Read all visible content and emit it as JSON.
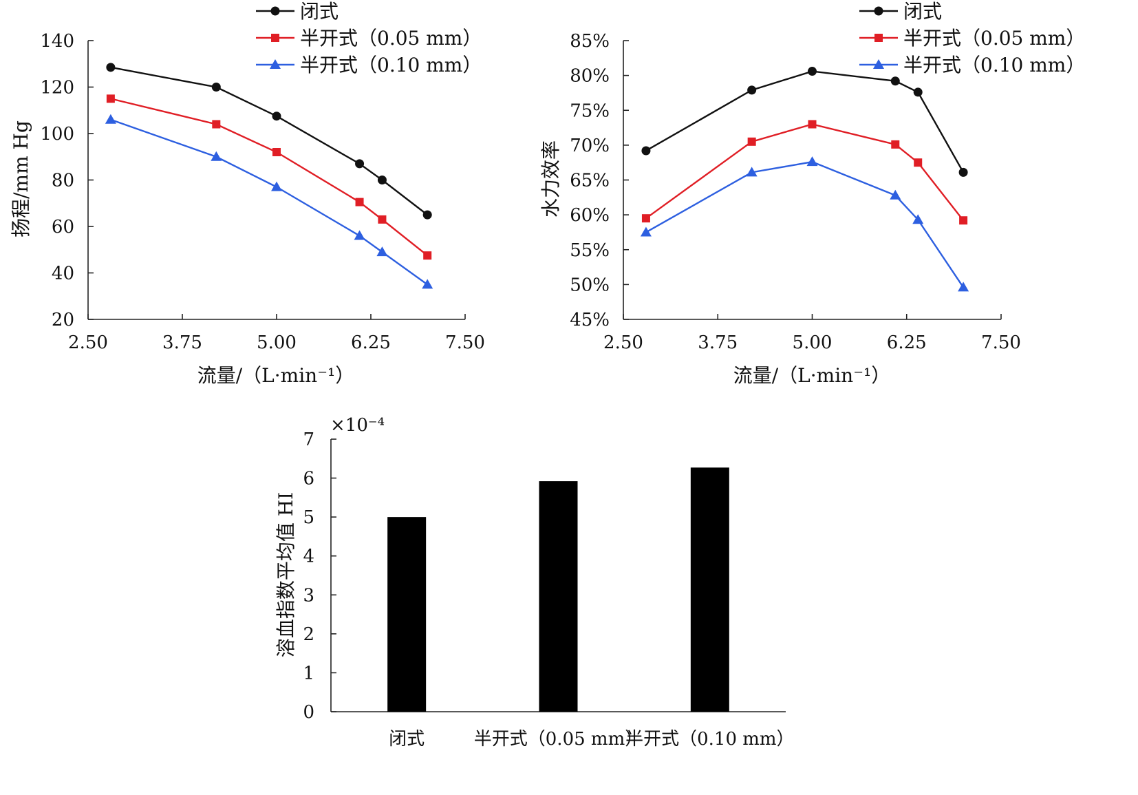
{
  "chart_data": [
    {
      "type": "line",
      "xlabel": "流量/（L·min⁻¹）",
      "ylabel": "扬程/mm Hg",
      "xlim": [
        2.5,
        7.5
      ],
      "ylim": [
        20,
        140
      ],
      "x_ticks": [
        "2.50",
        "3.75",
        "5.00",
        "6.25",
        "7.50"
      ],
      "y_ticks": [
        "20",
        "40",
        "60",
        "80",
        "100",
        "120",
        "140"
      ],
      "legend_position": "top-right",
      "x": [
        2.8,
        4.2,
        5.0,
        6.1,
        6.4,
        7.0
      ],
      "series": [
        {
          "name": "闭式",
          "color": "#111111",
          "marker": "circle",
          "values": [
            128.5,
            120,
            107.5,
            87,
            80,
            65
          ]
        },
        {
          "name": "半开式（0.05 mm）",
          "color": "#e01e25",
          "marker": "square",
          "values": [
            115,
            104,
            92,
            70.5,
            63,
            47.5
          ]
        },
        {
          "name": "半开式（0.10 mm）",
          "color": "#2d5fe0",
          "marker": "triangle",
          "values": [
            106,
            90,
            77,
            56,
            49,
            35
          ]
        }
      ]
    },
    {
      "type": "line",
      "xlabel": "流量/（L·min⁻¹）",
      "ylabel": "水力效率",
      "xlim": [
        2.5,
        7.5
      ],
      "ylim": [
        45,
        85
      ],
      "x_ticks": [
        "2.50",
        "3.75",
        "5.00",
        "6.25",
        "7.50"
      ],
      "y_ticks": [
        "45%",
        "50%",
        "55%",
        "60%",
        "65%",
        "70%",
        "75%",
        "80%",
        "85%"
      ],
      "legend_position": "top-right",
      "x": [
        2.8,
        4.2,
        5.0,
        6.1,
        6.4,
        7.0
      ],
      "series": [
        {
          "name": "闭式",
          "color": "#111111",
          "marker": "circle",
          "values": [
            69.2,
            77.9,
            80.6,
            79.2,
            77.6,
            66.1
          ]
        },
        {
          "name": "半开式（0.05 mm）",
          "color": "#e01e25",
          "marker": "square",
          "values": [
            59.5,
            70.5,
            73.0,
            70.1,
            67.5,
            59.2
          ]
        },
        {
          "name": "半开式（0.10 mm）",
          "color": "#2d5fe0",
          "marker": "triangle",
          "values": [
            57.5,
            66.1,
            67.6,
            62.8,
            59.3,
            49.6
          ]
        }
      ]
    },
    {
      "type": "bar",
      "ylabel": "溶血指数平均值 HI",
      "scale_note": "×10⁻⁴",
      "ylim": [
        0,
        7
      ],
      "y_ticks": [
        "0",
        "1",
        "2",
        "3",
        "4",
        "5",
        "6",
        "7"
      ],
      "categories": [
        "闭式",
        "半开式（0.05 mm）",
        "半开式（0.10 mm）"
      ],
      "values": [
        5.0,
        5.92,
        6.27
      ],
      "bar_color": "#000000"
    }
  ]
}
